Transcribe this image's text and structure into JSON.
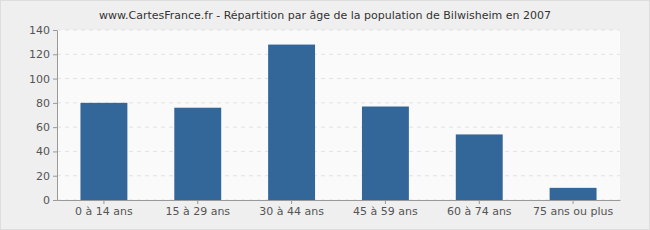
{
  "chart_data": {
    "type": "bar",
    "title": "www.CartesFrance.fr - Répartition par âge de la population de Bilwisheim en 2007",
    "categories": [
      "0 à 14 ans",
      "15 à 29 ans",
      "30 à 44 ans",
      "45 à 59 ans",
      "60 à 74 ans",
      "75 ans ou plus"
    ],
    "values": [
      80,
      76,
      128,
      77,
      54,
      10
    ],
    "color": "#336699",
    "ylim": [
      0,
      140
    ],
    "yticks": [
      0,
      20,
      40,
      60,
      80,
      100,
      120,
      140
    ],
    "grid": true
  }
}
